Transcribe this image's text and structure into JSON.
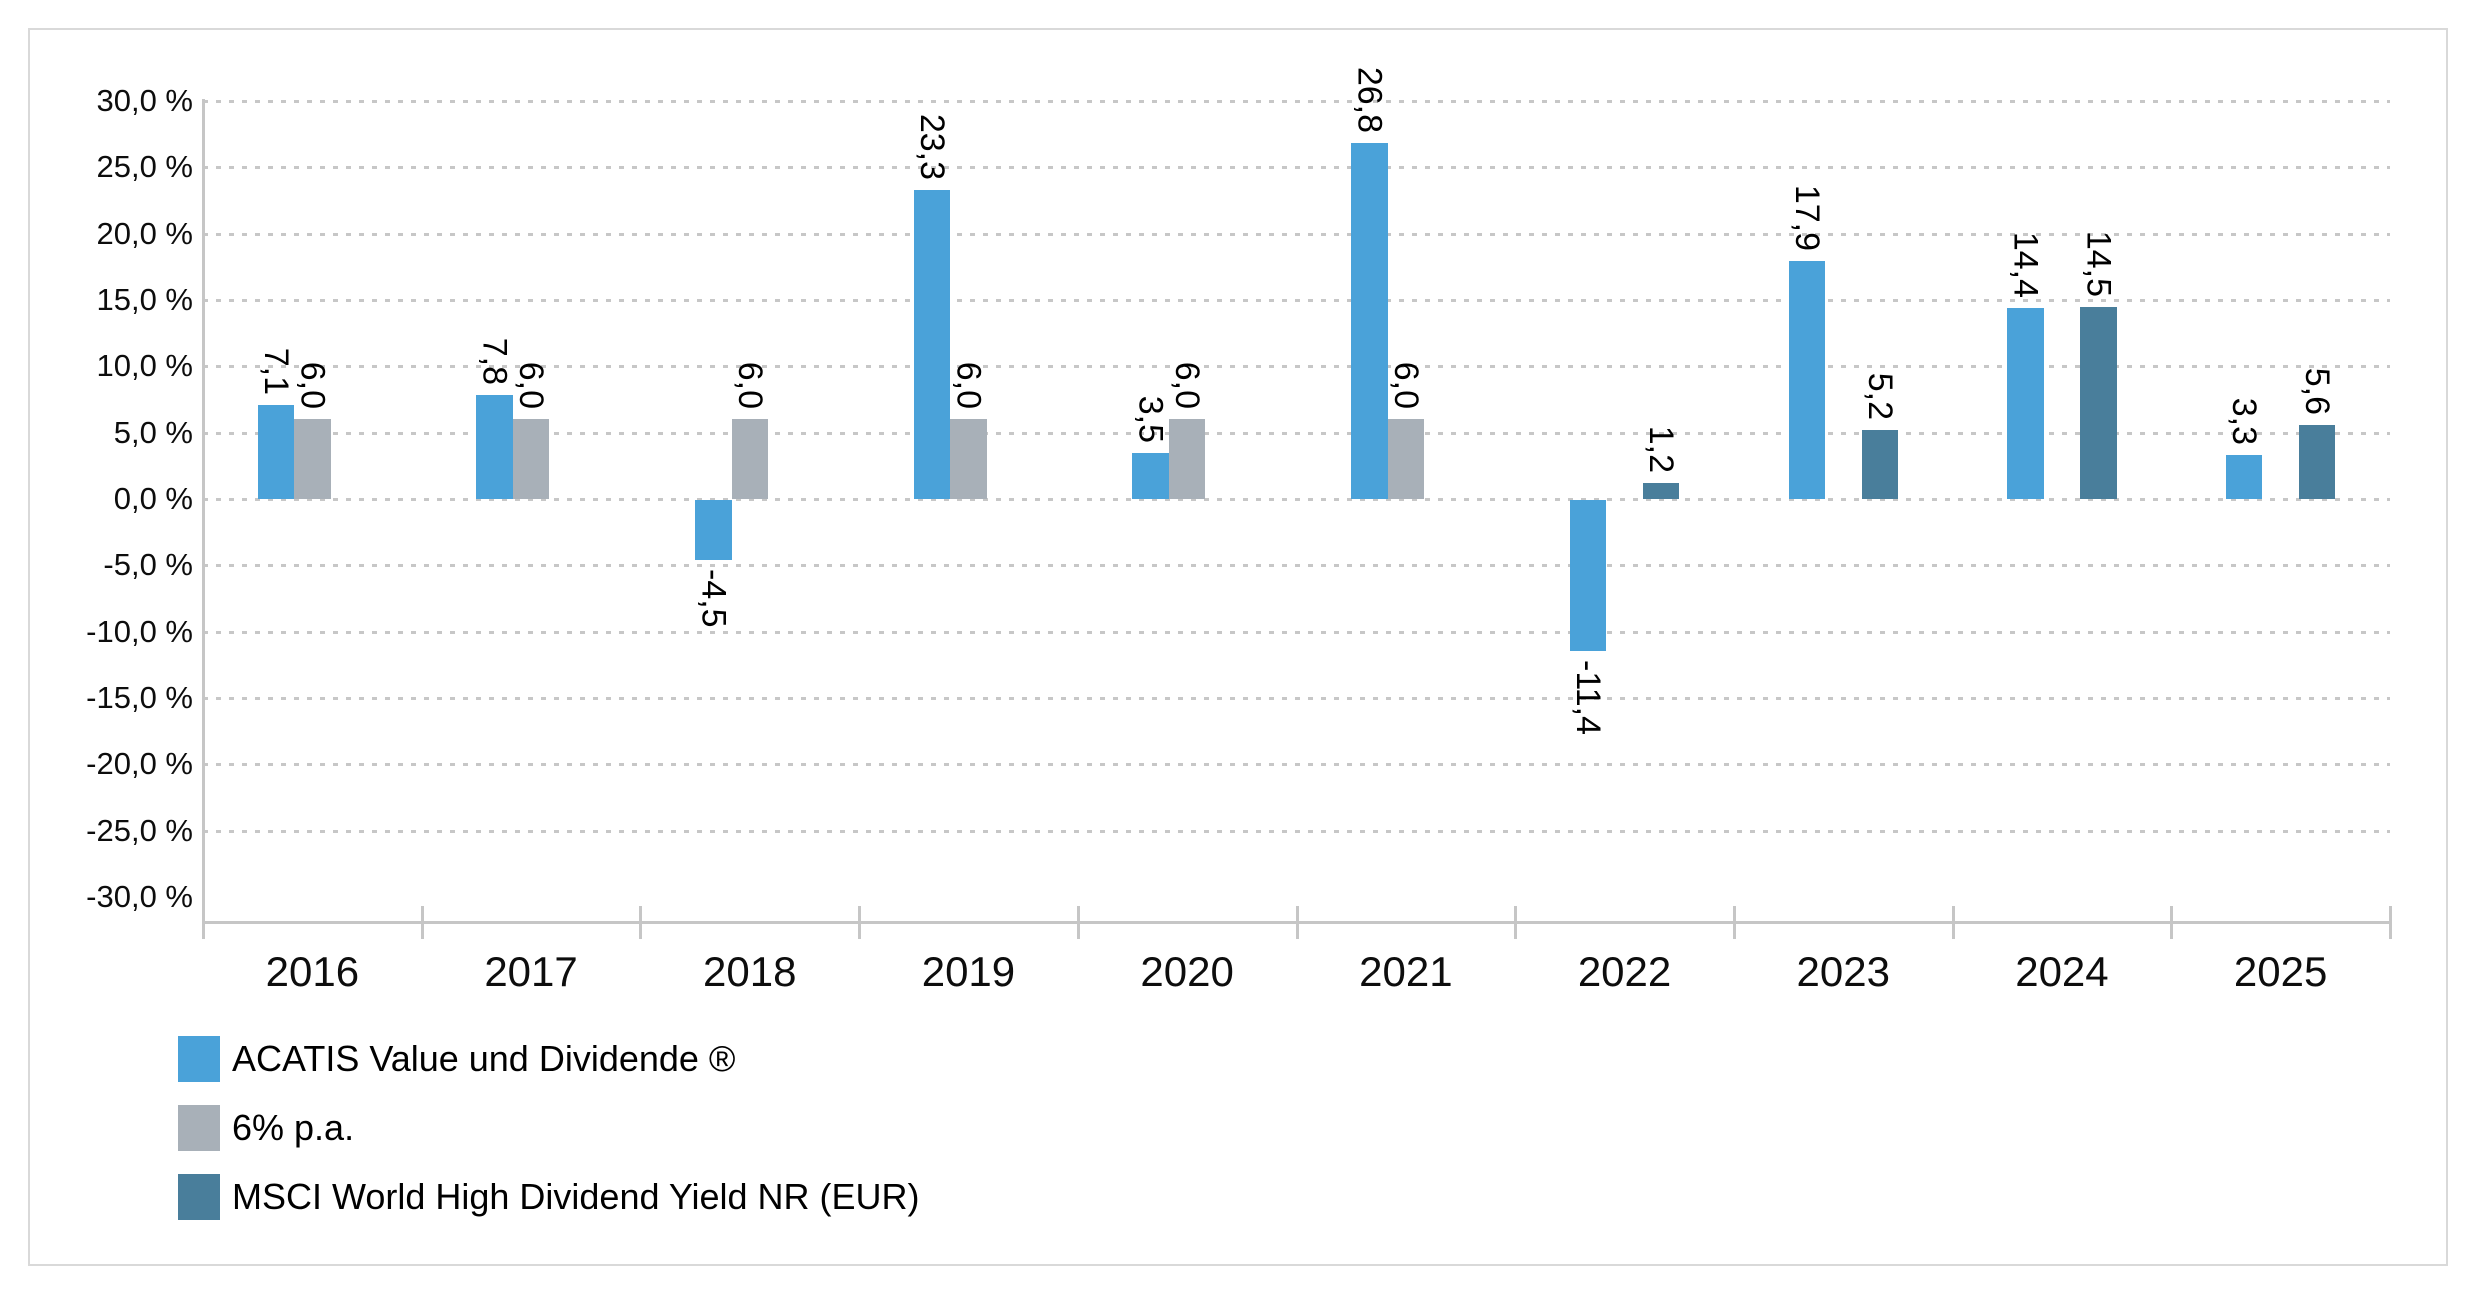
{
  "chart_data": {
    "type": "bar",
    "title": "",
    "categories": [
      "2016",
      "2017",
      "2018",
      "2019",
      "2020",
      "2021",
      "2022",
      "2023",
      "2024",
      "2025"
    ],
    "series": [
      {
        "name": "ACATIS Value und Dividende ®",
        "color": "#4aa2d9",
        "values": [
          7.1,
          7.8,
          -4.5,
          23.3,
          3.5,
          26.8,
          -11.4,
          17.9,
          14.4,
          3.3
        ],
        "labels": [
          "7,1",
          "7,8",
          "-4,5",
          "23,3",
          "3,5",
          "26,8",
          "-11,4",
          "17,9",
          "14,4",
          "3,3"
        ]
      },
      {
        "name": "6% p.a.",
        "color": "#a8b0b8",
        "values": [
          6.0,
          6.0,
          6.0,
          6.0,
          6.0,
          6.0,
          null,
          null,
          null,
          null
        ],
        "labels": [
          "6,0",
          "6,0",
          "6,0",
          "6,0",
          "6,0",
          "6,0",
          null,
          null,
          null,
          null
        ]
      },
      {
        "name": "MSCI World High Dividend Yield NR (EUR)",
        "color": "#497e9b",
        "values": [
          null,
          null,
          null,
          null,
          null,
          null,
          1.2,
          5.2,
          14.5,
          5.6
        ],
        "labels": [
          null,
          null,
          null,
          null,
          null,
          null,
          "1,2",
          "5,2",
          "14,5",
          "5,6"
        ]
      }
    ],
    "y_axis": {
      "min": -30,
      "max": 30,
      "step": 5,
      "tick_labels": [
        "30,0 %",
        "25,0 %",
        "20,0 %",
        "15,0 %",
        "10,0 %",
        "5,0 %",
        "0,0 %",
        "-5,0 %",
        "-10,0 %",
        "-15,0 %",
        "-20,0 %",
        "-25,0 %",
        "-30,0 %"
      ],
      "gridline_values": [
        30,
        25,
        20,
        15,
        10,
        5,
        0,
        -5,
        -10,
        -15,
        -20,
        -25
      ]
    },
    "grid": "dashed-horizontal",
    "legend_position": "bottom-left",
    "colors": {
      "gridline": "#c7c7c7",
      "axis": "#c6c6c6",
      "frame_border": "#d9d9d9",
      "text": "#000000"
    }
  }
}
